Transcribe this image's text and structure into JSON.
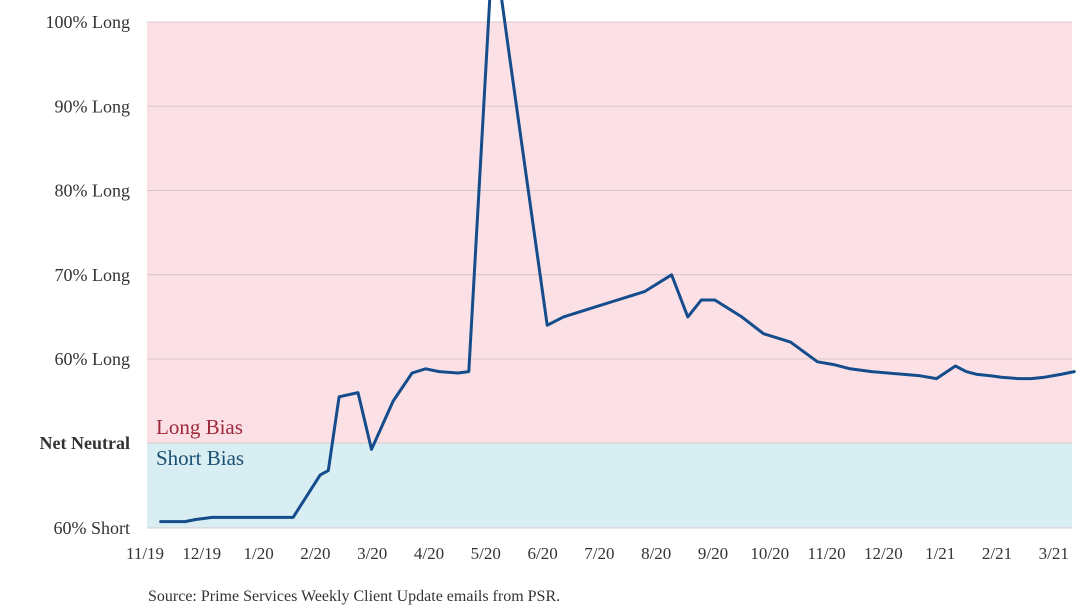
{
  "colors": {
    "long_region": "#fbe1e6",
    "short_region": "#d8eef3",
    "series_line": "#144c8c",
    "long_label": "#a0283c",
    "short_label": "#1b4f72",
    "grid": "#d9c8cb"
  },
  "source": "Source: Prime Services Weekly Client Update emails from PSR.",
  "chart_data": {
    "type": "line",
    "title": "",
    "xlabel": "",
    "ylabel": "",
    "y_tick_labels": [
      {
        "value": 60,
        "label": "60% Short"
      },
      {
        "value": 100,
        "label": "Net Neutral"
      },
      {
        "value": 160,
        "label": "60% Long"
      },
      {
        "value": 170,
        "label": "70% Long"
      },
      {
        "value": 180,
        "label": "80% Long"
      },
      {
        "value": 190,
        "label": "90% Long"
      },
      {
        "value": 200,
        "label": "100% Long"
      }
    ],
    "x_ticks": [
      "11/19",
      "12/19",
      "1/20",
      "2/20",
      "3/20",
      "4/20",
      "5/20",
      "6/20",
      "7/20",
      "8/20",
      "9/20",
      "10/20",
      "11/20",
      "12/20",
      "1/21",
      "2/21",
      "3/21"
    ],
    "regions": [
      {
        "label": "Long Bias",
        "from": 100,
        "to": 200
      },
      {
        "label": "Short Bias",
        "from": 40,
        "to": 100
      }
    ],
    "grid": true,
    "series": [
      {
        "x": [
          0.05,
          0.45,
          0.5,
          0.7,
          1.0,
          1.5,
          2.0,
          2.5,
          3.0,
          3.15,
          3.35,
          3.7,
          3.95,
          4.35,
          4.7,
          4.95,
          5.2,
          5.55,
          5.75,
          6.2,
          6.5,
          7.2,
          7.5,
          8.0,
          8.5,
          9.0,
          9.5,
          9.8,
          10.05,
          10.3,
          10.8,
          11.2,
          11.7,
          12.2,
          12.5,
          12.8,
          13.2,
          13.5,
          13.8,
          14.1,
          14.4,
          14.75,
          14.95,
          15.15,
          15.4,
          15.6,
          15.9,
          16.15,
          16.4,
          16.7,
          16.95
        ],
        "y": [
          63,
          63,
          63,
          64,
          65,
          65,
          65,
          65,
          85,
          87,
          133,
          136,
          97,
          130,
          150,
          153,
          151,
          150,
          151,
          210,
          196,
          164,
          165,
          166,
          167,
          168,
          170,
          165,
          167,
          167,
          165,
          163,
          162,
          158,
          156,
          153,
          151,
          150,
          149,
          148,
          146,
          155,
          151,
          149,
          148,
          147,
          146,
          146,
          147,
          149,
          151
        ]
      }
    ]
  }
}
